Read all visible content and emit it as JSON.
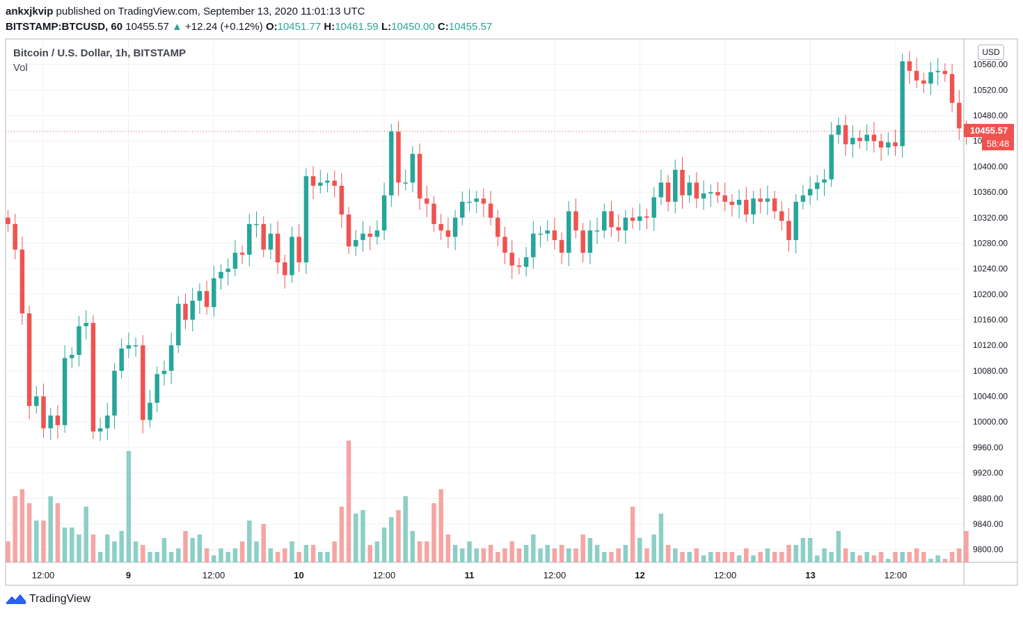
{
  "header": {
    "publisher": "ankxjkvip",
    "published_text": "published on TradingView.com, September 13, 2020 11:01:13 UTC",
    "symbol": "BITSTAMP:BTCUSD, 60",
    "last": "10455.57",
    "change_arrow": "▲",
    "change": "+12.24 (+0.12%)",
    "o_label": "O:",
    "o_value": "10451.77",
    "h_label": "H:",
    "h_value": "10461.59",
    "l_label": "L:",
    "l_value": "10450.00",
    "c_label": "C:",
    "c_value": "10455.57"
  },
  "legend": {
    "title": "Bitcoin / U.S. Dollar, 1h, BITSTAMP",
    "vol": "Vol"
  },
  "currency_button": "USD",
  "last_price_tag": "10455.57",
  "countdown_tag": "58:48",
  "footer": {
    "brand": "TradingView",
    "logo_icon": "tradingview-logo-icon"
  },
  "colors": {
    "up": "#26a69a",
    "down": "#ef5350",
    "up_vol": "#8ccfc6",
    "down_vol": "#f5a5a3",
    "grid": "#eef0f3"
  },
  "chart_data": {
    "type": "candlestick",
    "title": "Bitcoin / U.S. Dollar, 1h, BITSTAMP",
    "interval": "1h",
    "ylim": [
      9780,
      10600
    ],
    "y_ticks": [
      9800,
      9840,
      9880,
      9920,
      9960,
      10000,
      10040,
      10080,
      10120,
      10160,
      10200,
      10240,
      10280,
      10320,
      10360,
      10400,
      10440,
      10480,
      10520,
      10560
    ],
    "x_tick_labels": [
      "12:00",
      "9",
      "12:00",
      "10",
      "12:00",
      "11",
      "12:00",
      "12",
      "12:00",
      "13",
      "12:00"
    ],
    "x_tick_hours": [
      12,
      24,
      36,
      48,
      60,
      72,
      84,
      96,
      108,
      120,
      132
    ],
    "last_price": 10455.57,
    "candles_close": [
      10310,
      10270,
      10170,
      10025,
      10040,
      9990,
      10010,
      9995,
      10100,
      10105,
      10150,
      10155,
      9985,
      9990,
      10010,
      10080,
      10115,
      10120,
      10120,
      10003,
      10030,
      10075,
      10080,
      10120,
      10185,
      10160,
      10190,
      10205,
      10180,
      10225,
      10235,
      10240,
      10265,
      10262,
      10310,
      10310,
      10270,
      10295,
      10250,
      10230,
      10290,
      10250,
      10385,
      10370,
      10375,
      10378,
      10370,
      10325,
      10275,
      10285,
      10295,
      10290,
      10300,
      10355,
      10455,
      10375,
      10375,
      10420,
      10350,
      10342,
      10310,
      10300,
      10290,
      10320,
      10345,
      10345,
      10350,
      10342,
      10320,
      10290,
      10265,
      10245,
      10243,
      10258,
      10295,
      10295,
      10300,
      10285,
      10265,
      10330,
      10300,
      10265,
      10300,
      10300,
      10330,
      10305,
      10300,
      10320,
      10315,
      10322,
      10320,
      10352,
      10375,
      10345,
      10395,
      10355,
      10375,
      10350,
      10358,
      10360,
      10355,
      10345,
      10340,
      10348,
      10325,
      10350,
      10345,
      10350,
      10330,
      10315,
      10285,
      10345,
      10355,
      10365,
      10375,
      10380,
      10450,
      10465,
      10435,
      10445,
      10440,
      10450,
      10440,
      10430,
      10438,
      10432,
      10565,
      10550,
      10535,
      10530,
      10548,
      10550,
      10545,
      10500,
      10460,
      10455.57
    ],
    "volume_close": [
      30,
      95,
      105,
      85,
      60,
      60,
      95,
      85,
      50,
      50,
      40,
      80,
      40,
      15,
      40,
      30,
      45,
      160,
      30,
      25,
      15,
      15,
      35,
      15,
      20,
      45,
      35,
      40,
      20,
      10,
      20,
      15,
      20,
      30,
      60,
      30,
      55,
      20,
      15,
      20,
      30,
      15,
      25,
      25,
      15,
      15,
      30,
      80,
      175,
      70,
      75,
      25,
      30,
      50,
      65,
      75,
      95,
      45,
      30,
      30,
      85,
      105,
      40,
      25,
      20,
      30,
      20,
      20,
      25,
      15,
      20,
      30,
      20,
      25,
      40,
      20,
      25,
      20,
      25,
      20,
      20,
      40,
      35,
      25,
      15,
      15,
      20,
      25,
      80,
      35,
      20,
      40,
      70,
      25,
      20,
      15,
      15,
      20,
      10,
      15,
      15,
      15,
      15,
      10,
      20,
      10,
      15,
      20,
      15,
      15,
      25,
      25,
      35,
      35,
      10,
      20,
      15,
      45,
      20,
      15,
      10,
      15,
      10,
      15,
      5,
      15,
      15,
      15,
      20,
      15,
      5,
      10,
      5,
      15,
      20,
      45,
      5
    ]
  }
}
